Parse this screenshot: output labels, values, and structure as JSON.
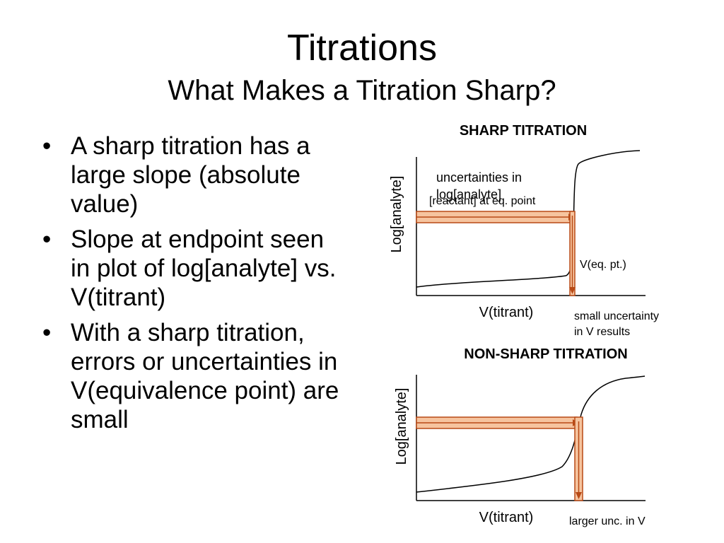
{
  "slide": {
    "title": "Titrations",
    "subtitle": "What Makes a Titration Sharp?"
  },
  "bullets": [
    "A sharp titration has a large slope (absolute value)",
    "Slope at endpoint seen in plot of log[analyte] vs. V(titrant)",
    "With a sharp titration, errors or uncertainties in V(equivalence point) are small"
  ],
  "bullet_glyph": "•",
  "sharp_plot": {
    "heading": "SHARP TITRATION",
    "ylabel": "Log[analyte]",
    "xlabel": "V(titrant)",
    "annotation_uncertainty": [
      "uncertainties in",
      "log[analyte]"
    ],
    "annotation_reactant": "[reactant] at eq. point",
    "annotation_veq": "V(eq. pt.)",
    "annotation_small_unc": [
      "small uncertainty",
      "in V results"
    ]
  },
  "nonsharp_plot": {
    "heading": "NON-SHARP TITRATION",
    "ylabel": "Log[analyte]",
    "xlabel": "V(titrant)",
    "annotation_larger_unc": "larger unc. in V"
  },
  "colors": {
    "band_fill": "#f6c49f",
    "band_stroke": "#b84a16",
    "axis": "#000000",
    "curve": "#000000"
  }
}
